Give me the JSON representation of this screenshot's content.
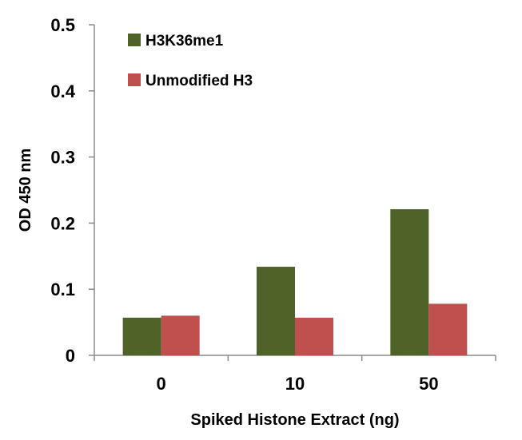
{
  "chart_data": {
    "type": "bar",
    "categories": [
      "0",
      "10",
      "50"
    ],
    "series": [
      {
        "name": "H3K36me1",
        "values": [
          0.057,
          0.134,
          0.221
        ],
        "color": "#4f6228"
      },
      {
        "name": "Unmodified H3",
        "values": [
          0.06,
          0.057,
          0.078
        ],
        "color": "#c0504d"
      }
    ],
    "xlabel": "Spiked Histone Extract (ng)",
    "ylabel": "OD 450 nm",
    "ylim": [
      0,
      0.5
    ],
    "yticks": [
      "0",
      "0.1",
      "0.2",
      "0.3",
      "0.4",
      "0.5"
    ],
    "grid": false,
    "legend": "top-left"
  }
}
